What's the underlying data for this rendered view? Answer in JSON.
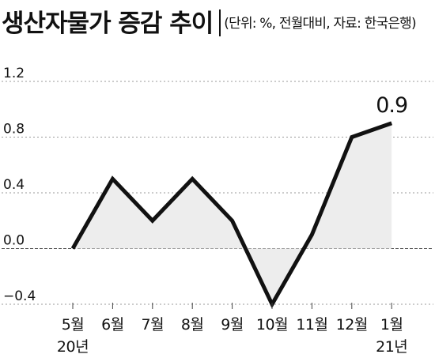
{
  "header": {
    "title": "생산자물가 증감 추이",
    "source_note": "(단위: %, 전월대비, 자료: 한국은행)"
  },
  "chart_data": {
    "type": "area",
    "title": "생산자물가 증감 추이",
    "subtitle": "(단위: %, 전월대비, 자료: 한국은행)",
    "xlabel": "",
    "ylabel": "",
    "categories": [
      "5월",
      "6월",
      "7월",
      "8월",
      "9월",
      "10월",
      "11월",
      "12월",
      "1월"
    ],
    "year_labels": [
      {
        "index": 0,
        "label": "20년"
      },
      {
        "index": 8,
        "label": "21년"
      }
    ],
    "series": [
      {
        "values": [
          0.0,
          0.5,
          0.2,
          0.5,
          0.2,
          -0.4,
          0.1,
          0.8,
          0.9
        ]
      }
    ],
    "y_ticks": [
      "1.2",
      "0.8",
      "0.4",
      "0.0",
      "−0.4"
    ],
    "y_tick_values": [
      1.2,
      0.8,
      0.4,
      0.0,
      -0.4
    ],
    "ylim": [
      -0.4,
      1.2
    ],
    "highlight_label": "0.9",
    "highlight_index": 8,
    "grid": "dotted horizontal",
    "colors": {
      "line": "#111111",
      "fill": "#ededed",
      "grid": "#9a9a9a",
      "text": "#111111"
    }
  }
}
